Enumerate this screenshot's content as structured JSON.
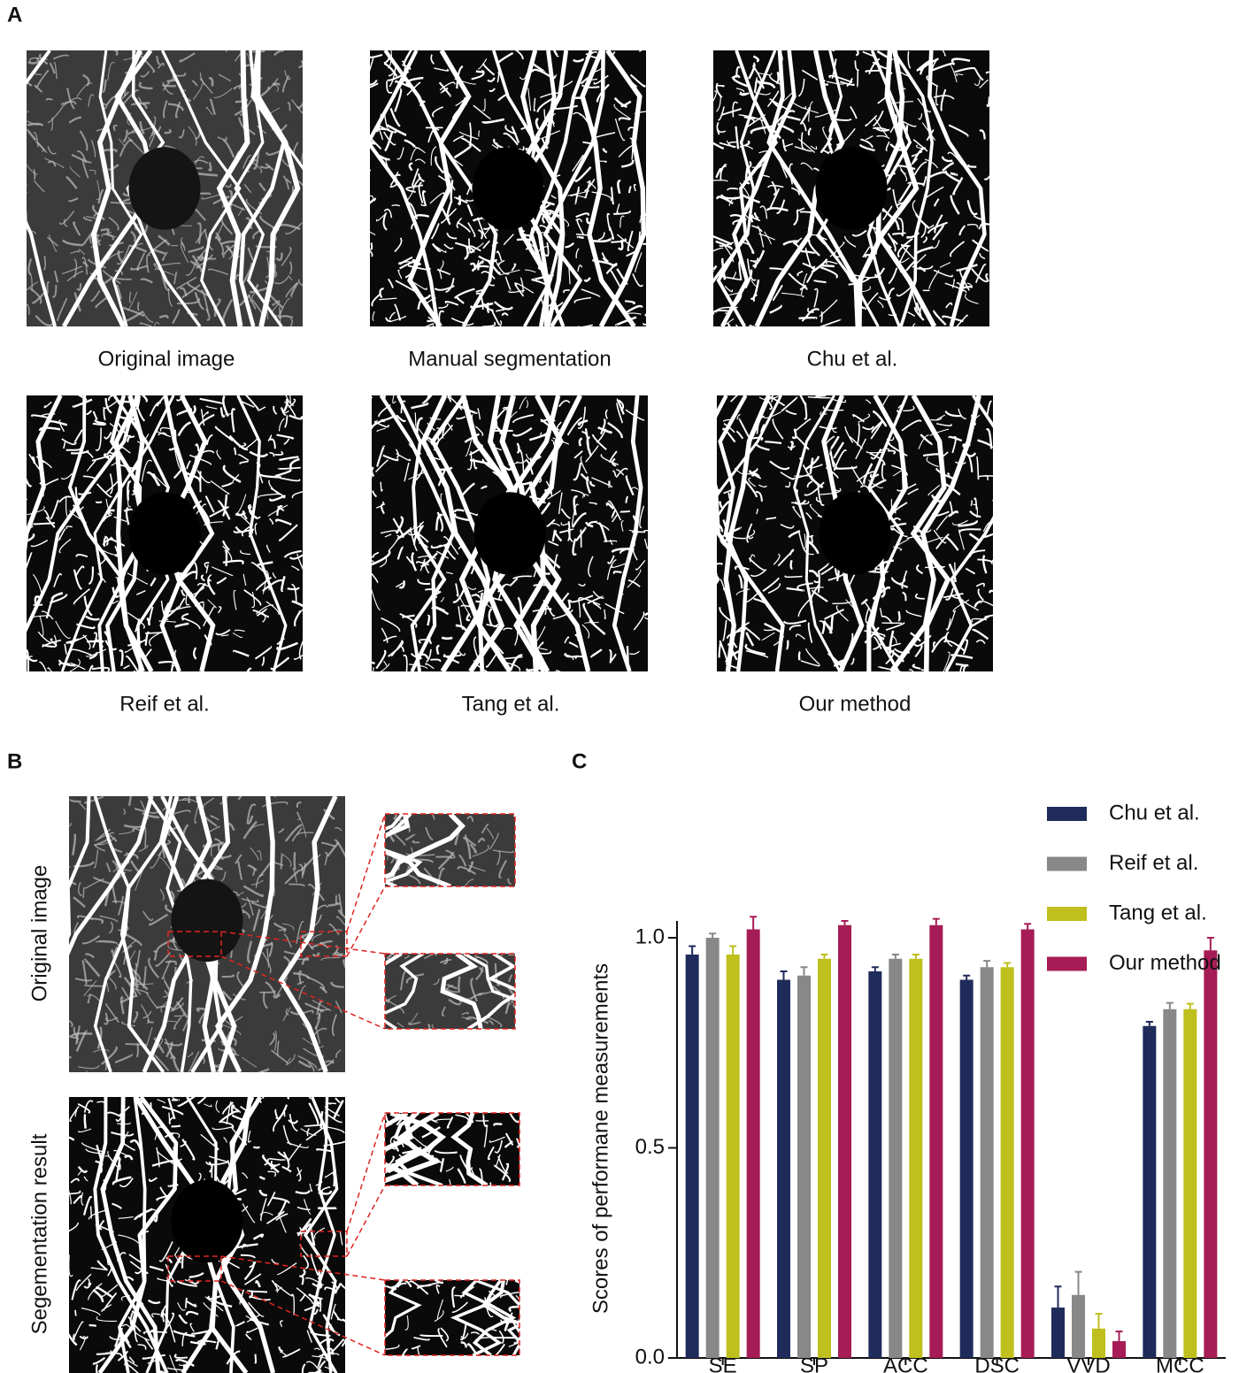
{
  "panels": {
    "a": {
      "label": "A",
      "captions": [
        "Original image",
        "Manual segmentation",
        "Chu et al.",
        "Reif et al.",
        "Tang et al.",
        "Our method"
      ]
    },
    "b": {
      "label": "B",
      "row_labels": [
        "Original image",
        "Segementation result"
      ]
    },
    "c": {
      "label": "C"
    }
  },
  "chart_data": {
    "type": "bar",
    "y_label": "Scores of performane measurements",
    "categories": [
      "SE",
      "SP",
      "ACC",
      "DSC",
      "VVD",
      "MCC"
    ],
    "series": [
      {
        "name": "Chu et al.",
        "color": "#1f2b5b",
        "values": [
          0.96,
          0.9,
          0.92,
          0.9,
          0.12,
          0.79
        ],
        "errors": [
          0.02,
          0.02,
          0.01,
          0.01,
          0.05,
          0.01
        ]
      },
      {
        "name": "Reif et al.",
        "color": "#888888",
        "values": [
          1.0,
          0.91,
          0.95,
          0.93,
          0.15,
          0.83
        ],
        "errors": [
          0.01,
          0.02,
          0.01,
          0.015,
          0.055,
          0.015
        ]
      },
      {
        "name": "Tang et al.",
        "color": "#bfbf1e",
        "values": [
          0.96,
          0.95,
          0.95,
          0.93,
          0.07,
          0.83
        ],
        "errors": [
          0.02,
          0.01,
          0.01,
          0.01,
          0.035,
          0.013
        ]
      },
      {
        "name": "Our method",
        "color": "#a61c56",
        "values": [
          1.02,
          1.03,
          1.03,
          1.02,
          0.04,
          0.97
        ],
        "errors": [
          0.03,
          0.01,
          0.015,
          0.013,
          0.023,
          0.03
        ]
      }
    ],
    "ylim": [
      0,
      1.04
    ],
    "yticks": [
      {
        "value": 0,
        "label": "0.0"
      },
      {
        "value": 0.5,
        "label": "0.5"
      },
      {
        "value": 1,
        "label": "1.0"
      }
    ],
    "legend": "top-right"
  }
}
